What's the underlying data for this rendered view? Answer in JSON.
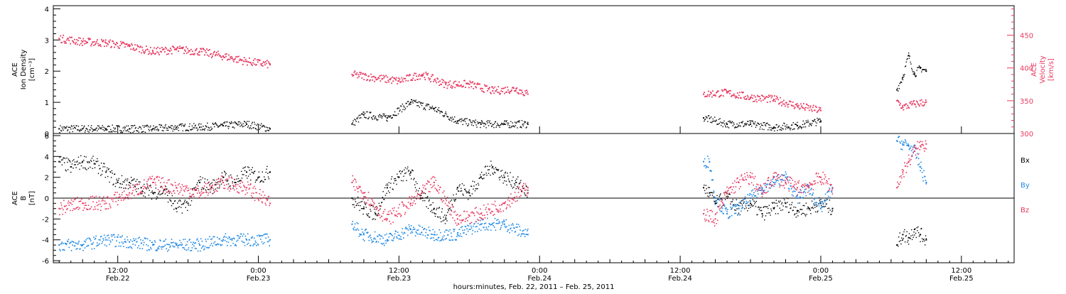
{
  "x_axis": {
    "xlabel": "hours:minutes, Feb. 22, 2011 – Feb. 25, 2011",
    "ticks": [
      {
        "hour": 12,
        "time": "12:00",
        "date": "Feb.22"
      },
      {
        "hour": 24,
        "time": "0:00",
        "date": "Feb.23"
      },
      {
        "hour": 36,
        "time": "12:00",
        "date": "Feb.23"
      },
      {
        "hour": 48,
        "time": "0:00",
        "date": "Feb.24"
      },
      {
        "hour": 60,
        "time": "12:00",
        "date": "Feb.24"
      },
      {
        "hour": 72,
        "time": "0:00",
        "date": "Feb.25"
      },
      {
        "hour": 84,
        "time": "12:00",
        "date": "Feb.25"
      }
    ]
  },
  "top_panel": {
    "ylabel_left": [
      "ACE",
      "Ion Density",
      "[cm⁻³]"
    ],
    "ylabel_right": [
      "ACE",
      "Velocity",
      "[km/s]"
    ],
    "left_ticks": [
      "0",
      "1",
      "2",
      "3",
      "4"
    ],
    "right_ticks": [
      "300",
      "350",
      "400",
      "450"
    ]
  },
  "bottom_panel": {
    "ylabel_left": [
      "ACE",
      "B",
      "[nT]"
    ],
    "left_ticks": [
      "-6",
      "-4",
      "-2",
      "0",
      "2",
      "4",
      "6"
    ],
    "legend": [
      {
        "label": "Bx",
        "color": "#000000"
      },
      {
        "label": "By",
        "color": "#1e88e5"
      },
      {
        "label": "Bz",
        "color": "#e8385f"
      }
    ]
  },
  "colors": {
    "density": "#000000",
    "velocity": "#e8385f",
    "bx": "#000000",
    "by": "#1e88e5",
    "bz": "#e8385f",
    "axis_right": "#e8385f"
  },
  "chart_data": [
    {
      "type": "scatter",
      "title": "",
      "x_units": "hours since Feb. 22, 2011 00:00 UT",
      "xlim": [
        6.5,
        88.5
      ],
      "y_left": {
        "label": "ACE Ion Density [cm-3]",
        "ylim": [
          0,
          4.1
        ]
      },
      "y_right": {
        "label": "ACE Velocity [km/s]",
        "ylim": [
          300,
          495
        ]
      },
      "series": [
        {
          "name": "Ion Density",
          "axis": "left",
          "color": "#000000",
          "x": [
            7,
            9,
            11,
            13,
            15,
            17,
            19,
            21,
            23,
            25,
            32,
            33,
            35,
            37,
            39,
            41,
            43,
            45,
            47,
            62,
            64,
            66,
            68,
            70,
            72,
            78.5,
            79,
            79.5,
            80,
            80.5,
            81
          ],
          "y": [
            0.15,
            0.15,
            0.15,
            0.15,
            0.15,
            0.2,
            0.2,
            0.25,
            0.3,
            0.15,
            0.3,
            0.6,
            0.5,
            1.0,
            0.8,
            0.4,
            0.3,
            0.3,
            0.3,
            0.5,
            0.3,
            0.3,
            0.2,
            0.25,
            0.4,
            1.4,
            1.8,
            2.5,
            1.9,
            2.1,
            2.0
          ]
        },
        {
          "name": "Velocity",
          "axis": "right",
          "color": "#e8385f",
          "x": [
            7,
            9,
            11,
            13,
            15,
            17,
            19,
            21,
            23,
            25,
            32,
            34,
            36,
            38,
            40,
            42,
            44,
            46,
            47,
            62,
            64,
            66,
            68,
            70,
            72,
            78.5,
            79,
            80,
            81
          ],
          "y": [
            445,
            440,
            438,
            433,
            425,
            428,
            425,
            418,
            410,
            405,
            390,
            385,
            380,
            390,
            375,
            375,
            365,
            368,
            360,
            360,
            362,
            355,
            352,
            342,
            335,
            350,
            340,
            345,
            348
          ]
        }
      ]
    },
    {
      "type": "scatter",
      "title": "",
      "x_units": "hours since Feb. 22, 2011 00:00 UT",
      "xlim": [
        6.5,
        88.5
      ],
      "ylabel": "ACE B [nT]",
      "ylim": [
        -6.2,
        6.2
      ],
      "series": [
        {
          "name": "Bx",
          "color": "#000000",
          "x": [
            7,
            8,
            9,
            10,
            11,
            12,
            13,
            14,
            15,
            16,
            17,
            18,
            19,
            20,
            21,
            22,
            23,
            24,
            25,
            32,
            33,
            34,
            35,
            36,
            37,
            38,
            39,
            40,
            41,
            42,
            43,
            44,
            45,
            46,
            47,
            62,
            62.5,
            63,
            64,
            65,
            66,
            67,
            68,
            69,
            70,
            71,
            72,
            73,
            78.5,
            79,
            79.5,
            80,
            80.5,
            81
          ],
          "y": [
            3.5,
            3.0,
            3.5,
            3.3,
            2.5,
            1.5,
            1.5,
            1.0,
            0.5,
            0.8,
            -1,
            -0.5,
            1.5,
            1.0,
            2.0,
            1.5,
            2.5,
            2.0,
            2.5,
            0,
            -1,
            -1.5,
            1,
            2,
            2.5,
            0,
            -1,
            -2,
            1,
            0.5,
            2,
            3,
            2,
            1.5,
            0.5,
            1.0,
            0.5,
            -0.5,
            0,
            -1,
            -0.5,
            -1.5,
            -1.0,
            -0.5,
            -1.2,
            -1,
            -0.5,
            -1.0,
            -4.5,
            -3.5,
            -3.8,
            -3,
            -3.5,
            -4
          ]
        },
        {
          "name": "By",
          "color": "#1e88e5",
          "x": [
            7,
            9,
            11,
            13,
            15,
            17,
            19,
            21,
            23,
            25,
            32,
            33,
            35,
            37,
            39,
            41,
            43,
            45,
            47,
            62,
            62.5,
            63,
            64,
            65,
            66,
            67,
            68,
            69,
            70,
            71,
            72,
            73,
            78.5,
            79,
            79.5,
            80,
            80.5,
            81
          ],
          "y": [
            -4.5,
            -4.5,
            -4,
            -4.2,
            -4.5,
            -4.5,
            -4.5,
            -4,
            -4,
            -4,
            -2.5,
            -3.5,
            -4,
            -3,
            -3.5,
            -3.5,
            -2.5,
            -2.5,
            -3.5,
            3.5,
            3.5,
            0,
            -1.5,
            -1,
            0,
            1,
            1.5,
            2,
            0,
            1,
            -1,
            1,
            5.5,
            5.2,
            5,
            4.5,
            3,
            1.5
          ]
        },
        {
          "name": "Bz",
          "color": "#e8385f",
          "x": [
            7,
            9,
            11,
            13,
            15,
            17,
            19,
            21,
            23,
            25,
            32,
            33,
            35,
            37,
            39,
            41,
            43,
            45,
            47,
            62,
            63,
            64,
            65,
            66,
            67,
            68,
            69,
            70,
            71,
            72,
            73,
            78.5,
            79,
            79.5,
            80,
            80.5,
            81
          ],
          "y": [
            -1,
            -0.5,
            -0.5,
            0.5,
            1.5,
            1.0,
            0.5,
            1.5,
            1.0,
            -0.5,
            1.5,
            0.5,
            -2,
            -0.5,
            1.5,
            -2,
            -1.5,
            -0.5,
            1,
            -1.5,
            -2,
            0.5,
            1.5,
            2.0,
            0.5,
            2,
            1.5,
            1,
            1.2,
            2,
            1,
            1,
            2.5,
            3.5,
            4.5,
            5,
            5.2
          ]
        }
      ]
    }
  ]
}
